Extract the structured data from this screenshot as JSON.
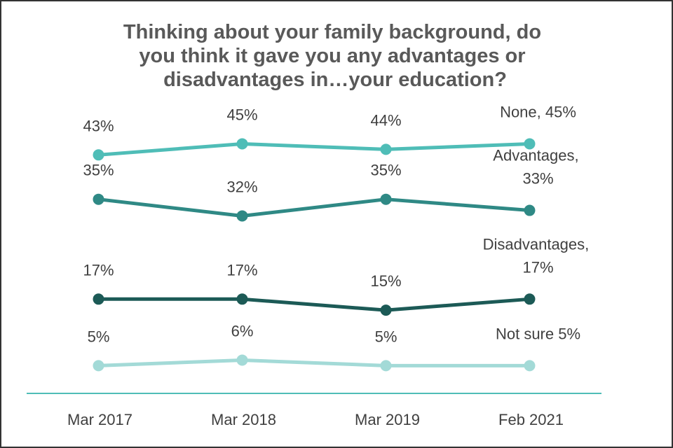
{
  "chart_data": {
    "type": "line",
    "title": "Thinking about your family background, do\nyou think it gave you any advantages or\ndisadvantages in…your education?",
    "categories": [
      "Mar 2017",
      "Mar 2018",
      "Mar 2019",
      "Feb 2021"
    ],
    "ylim": [
      0,
      52
    ],
    "series": [
      {
        "color": "#4fbdb7",
        "values": [
          43,
          45,
          44,
          45
        ],
        "value_labels": [
          "43%",
          "45%",
          "44%",
          "None, 45%"
        ]
      },
      {
        "color": "#2f8985",
        "values": [
          35,
          32,
          35,
          33
        ],
        "value_labels": [
          "35%",
          "32%",
          "35%",
          "Advantages,\n33%"
        ]
      },
      {
        "color": "#1c5a56",
        "values": [
          17,
          17,
          15,
          17
        ],
        "value_labels": [
          "17%",
          "17%",
          "15%",
          "Disadvantages,\n17%"
        ]
      },
      {
        "color": "#a3dad7",
        "values": [
          5,
          6,
          5,
          5
        ],
        "value_labels": [
          "5%",
          "6%",
          "5%",
          "Not sure 5%"
        ]
      }
    ]
  }
}
